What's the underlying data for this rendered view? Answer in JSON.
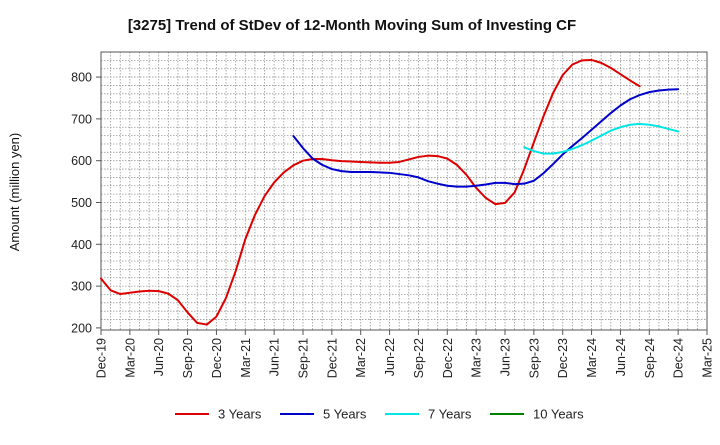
{
  "chart_data": {
    "type": "line",
    "title": "[3275]  Trend of StDev of 12-Month Moving Sum of Investing CF",
    "ylabel": "Amount (million yen)",
    "xlabel": "",
    "ylim": [
      195,
      860
    ],
    "yticks": [
      200,
      300,
      400,
      500,
      600,
      700,
      800
    ],
    "xticks": [
      "Dec-19",
      "Mar-20",
      "Jun-20",
      "Sep-20",
      "Dec-20",
      "Mar-21",
      "Jun-21",
      "Sep-21",
      "Dec-21",
      "Mar-22",
      "Jun-22",
      "Sep-22",
      "Dec-22",
      "Mar-23",
      "Jun-23",
      "Sep-23",
      "Dec-23",
      "Mar-24",
      "Jun-24",
      "Sep-24",
      "Dec-24",
      "Mar-25"
    ],
    "x_index_unit": "month",
    "grid": true,
    "legend_position": "bottom",
    "series": [
      {
        "name": "3 Years",
        "color": "#dd0000",
        "points": [
          [
            0,
            318
          ],
          [
            1,
            290
          ],
          [
            2,
            281
          ],
          [
            3,
            284
          ],
          [
            4,
            287
          ],
          [
            5,
            289
          ],
          [
            6,
            288
          ],
          [
            7,
            282
          ],
          [
            8,
            266
          ],
          [
            9,
            237
          ],
          [
            10,
            212
          ],
          [
            11,
            208
          ],
          [
            12,
            227
          ],
          [
            13,
            272
          ],
          [
            14,
            336
          ],
          [
            15,
            412
          ],
          [
            16,
            470
          ],
          [
            17,
            515
          ],
          [
            18,
            548
          ],
          [
            19,
            572
          ],
          [
            20,
            589
          ],
          [
            21,
            600
          ],
          [
            22,
            604
          ],
          [
            23,
            604
          ],
          [
            24,
            601
          ],
          [
            25,
            599
          ],
          [
            26,
            598
          ],
          [
            27,
            597
          ],
          [
            28,
            596
          ],
          [
            29,
            595
          ],
          [
            30,
            595
          ],
          [
            31,
            597
          ],
          [
            32,
            603
          ],
          [
            33,
            609
          ],
          [
            34,
            612
          ],
          [
            35,
            611
          ],
          [
            36,
            605
          ],
          [
            37,
            590
          ],
          [
            38,
            566
          ],
          [
            39,
            535
          ],
          [
            40,
            511
          ],
          [
            41,
            496
          ],
          [
            42,
            499
          ],
          [
            43,
            524
          ],
          [
            44,
            580
          ],
          [
            45,
            644
          ],
          [
            46,
            706
          ],
          [
            47,
            762
          ],
          [
            48,
            805
          ],
          [
            49,
            830
          ],
          [
            50,
            840
          ],
          [
            51,
            841
          ],
          [
            52,
            834
          ],
          [
            53,
            822
          ],
          [
            54,
            807
          ],
          [
            55,
            792
          ],
          [
            56,
            778
          ]
        ]
      },
      {
        "name": "5 Years",
        "color": "#0000cc",
        "points": [
          [
            20,
            659
          ],
          [
            21,
            630
          ],
          [
            22,
            605
          ],
          [
            23,
            590
          ],
          [
            24,
            580
          ],
          [
            25,
            575
          ],
          [
            26,
            573
          ],
          [
            27,
            573
          ],
          [
            28,
            573
          ],
          [
            29,
            572
          ],
          [
            30,
            571
          ],
          [
            31,
            568
          ],
          [
            32,
            565
          ],
          [
            33,
            560
          ],
          [
            34,
            551
          ],
          [
            35,
            545
          ],
          [
            36,
            540
          ],
          [
            37,
            538
          ],
          [
            38,
            538
          ],
          [
            39,
            540
          ],
          [
            40,
            543
          ],
          [
            41,
            547
          ],
          [
            42,
            547
          ],
          [
            43,
            544
          ],
          [
            44,
            545
          ],
          [
            45,
            552
          ],
          [
            46,
            570
          ],
          [
            47,
            592
          ],
          [
            48,
            615
          ],
          [
            49,
            635
          ],
          [
            50,
            654
          ],
          [
            51,
            674
          ],
          [
            52,
            694
          ],
          [
            53,
            714
          ],
          [
            54,
            732
          ],
          [
            55,
            747
          ],
          [
            56,
            757
          ],
          [
            57,
            764
          ],
          [
            58,
            768
          ],
          [
            59,
            770
          ],
          [
            60,
            771
          ]
        ]
      },
      {
        "name": "7 Years",
        "color": "#00e5e5",
        "points": [
          [
            44,
            632
          ],
          [
            45,
            623
          ],
          [
            46,
            617
          ],
          [
            47,
            617
          ],
          [
            48,
            621
          ],
          [
            49,
            628
          ],
          [
            50,
            637
          ],
          [
            51,
            648
          ],
          [
            52,
            660
          ],
          [
            53,
            672
          ],
          [
            54,
            680
          ],
          [
            55,
            686
          ],
          [
            56,
            688
          ],
          [
            57,
            686
          ],
          [
            58,
            682
          ],
          [
            59,
            676
          ],
          [
            60,
            670
          ]
        ]
      },
      {
        "name": "10 Years",
        "color": "#008000",
        "points": []
      }
    ]
  }
}
